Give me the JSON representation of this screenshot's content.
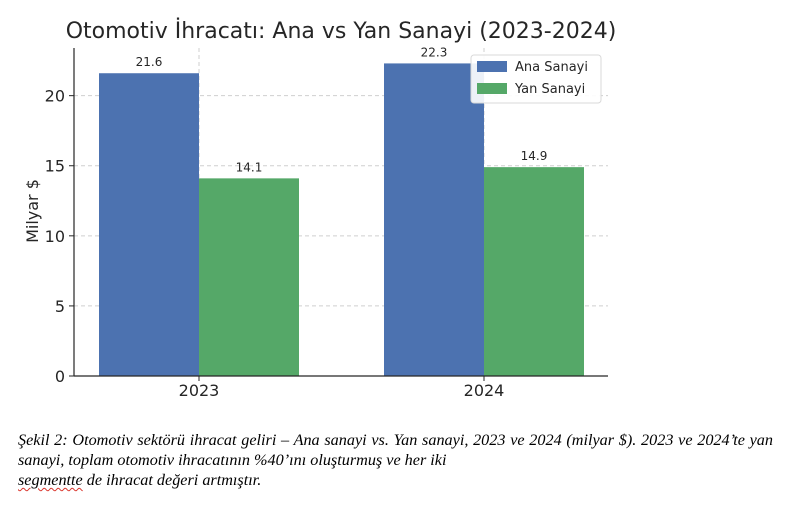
{
  "chart_data": {
    "type": "bar",
    "title": "Otomotiv İhracatı: Ana vs Yan Sanayi (2023-2024)",
    "ylabel": "Milyar $",
    "xlabel": "",
    "categories": [
      "2023",
      "2024"
    ],
    "series": [
      {
        "name": "Ana Sanayi",
        "values": [
          21.6,
          22.3
        ],
        "labels": [
          "21.6",
          "22.3"
        ],
        "color": "#4c72b0"
      },
      {
        "name": "Yan Sanayi",
        "values": [
          14.1,
          14.9
        ],
        "labels": [
          "14.1",
          "14.9"
        ],
        "color": "#55a868"
      }
    ],
    "ylim": [
      0,
      23.4
    ],
    "yticks": [
      0,
      5,
      10,
      15,
      20
    ],
    "ytick_labels": [
      "0",
      "5",
      "10",
      "15",
      "20"
    ],
    "grid": true,
    "legend_position": "top-right"
  },
  "caption": {
    "line1": "Şekil 2: Otomotiv sektörü ihracat geliri – Ana sanayi vs. Yan sanayi, 2023 ve 2024 (milyar $). 2023 ve 2024’te yan sanayi, toplam otomotiv ihracatının %40’ını oluşturmuş ve her iki",
    "squiggle_word": "segmentte",
    "line_end": " de ihracat değeri artmıştır."
  }
}
